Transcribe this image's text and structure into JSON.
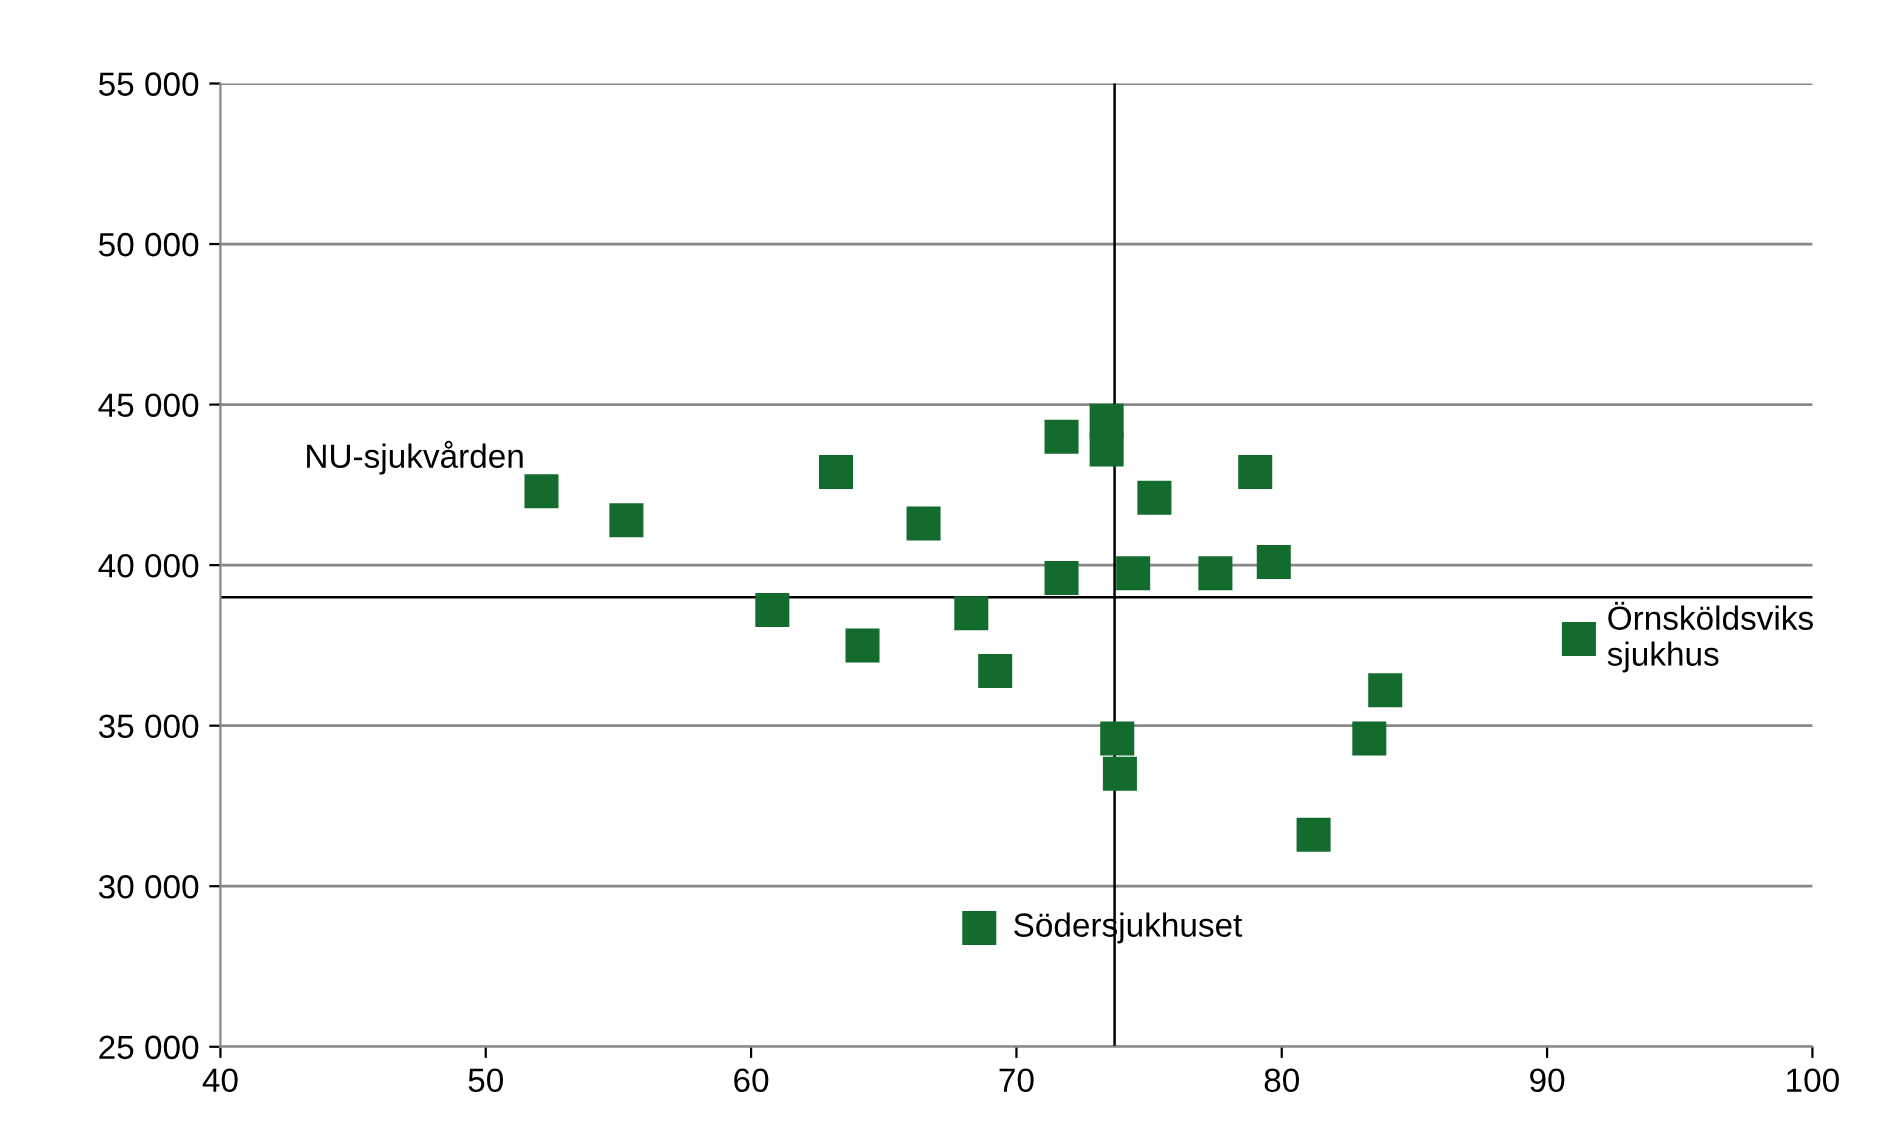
{
  "chart_data": {
    "type": "scatter",
    "marker": "square",
    "grid": "y",
    "xlim": [
      40,
      100
    ],
    "xticks": [
      40,
      50,
      60,
      70,
      80,
      90,
      100
    ],
    "ylim": [
      25000,
      55000
    ],
    "yticks": [
      {
        "value": 25000,
        "label": "25 000"
      },
      {
        "value": 30000,
        "label": "30 000"
      },
      {
        "value": 35000,
        "label": "35 000"
      },
      {
        "value": 40000,
        "label": "40 000"
      },
      {
        "value": 45000,
        "label": "45 000"
      },
      {
        "value": 50000,
        "label": "50 000"
      },
      {
        "value": 55000,
        "label": "55 000"
      }
    ],
    "series": [
      {
        "color": "#136b2e",
        "x": [
          52.1,
          55.3,
          60.8,
          63.2,
          64.2,
          66.5,
          68.3,
          69.2,
          71.7,
          71.7,
          73.4,
          73.4,
          73.8,
          73.9,
          74.4,
          75.2,
          77.5,
          79.0,
          79.7,
          81.2,
          83.3,
          83.9,
          91.2,
          68.6
        ],
        "values": [
          42300,
          41400,
          38600,
          42900,
          37500,
          41300,
          38500,
          36700,
          44000,
          39600,
          44500,
          43600,
          34600,
          33500,
          39750,
          42100,
          39750,
          42900,
          40100,
          31600,
          34600,
          36100,
          37700,
          28700
        ]
      }
    ],
    "ref_lines": [
      {
        "axis": "x",
        "value": 73.7,
        "color": "#000000"
      },
      {
        "axis": "y",
        "value": 39000,
        "color": "#000000"
      }
    ],
    "annotations": [
      {
        "text": "NU-sjukvården",
        "x": 52.1,
        "y": 42300
      },
      {
        "text": "Örnsköldsviks\nsjukhus",
        "x": 91.2,
        "y": 37700
      },
      {
        "text": "Södersjukhuset",
        "x": 68.6,
        "y": 28700
      }
    ]
  }
}
